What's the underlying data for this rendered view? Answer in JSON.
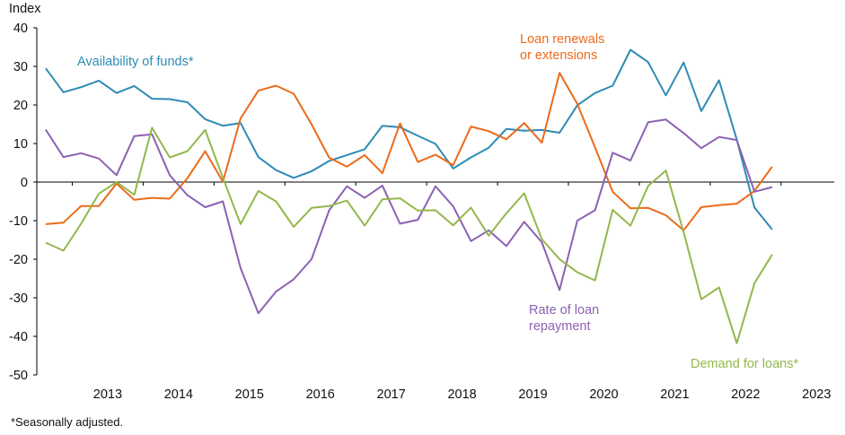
{
  "chart_data": {
    "type": "line",
    "ylabel": "Index",
    "ylim": [
      -50,
      40
    ],
    "yticks": [
      40,
      30,
      20,
      10,
      0,
      -10,
      -20,
      -30,
      -40,
      -50
    ],
    "x": [
      2012.625,
      2012.875,
      2013.125,
      2013.375,
      2013.625,
      2013.875,
      2014.125,
      2014.375,
      2014.625,
      2014.875,
      2015.125,
      2015.375,
      2015.625,
      2015.875,
      2016.125,
      2016.375,
      2016.625,
      2016.875,
      2017.125,
      2017.375,
      2017.625,
      2017.875,
      2018.125,
      2018.375,
      2018.625,
      2018.875,
      2019.125,
      2019.375,
      2019.625,
      2019.875,
      2020.125,
      2020.375,
      2020.625,
      2020.875,
      2021.125,
      2021.375,
      2021.625,
      2021.875,
      2022.125,
      2022.375,
      2022.625,
      2022.875
    ],
    "xlim": [
      2012.5,
      2023.75
    ],
    "xtick_labels": [
      "2013",
      "2014",
      "2015",
      "2016",
      "2017",
      "2018",
      "2019",
      "2020",
      "2021",
      "2022",
      "2023"
    ],
    "xtick_years": [
      2013,
      2014,
      2015,
      2016,
      2017,
      2018,
      2019,
      2020,
      2021,
      2022,
      2023
    ],
    "series": [
      {
        "name": "Availability of funds*",
        "color": "#2e8bb5",
        "values": [
          29.5,
          23.3,
          24.6,
          26.3,
          23.1,
          24.9,
          21.6,
          21.5,
          20.7,
          16.3,
          14.6,
          15.3,
          6.5,
          3.1,
          1.1,
          2.8,
          5.5,
          7.0,
          8.5,
          14.6,
          14.2,
          12.0,
          9.9,
          3.5,
          6.4,
          8.9,
          13.8,
          13.3,
          13.5,
          12.8,
          19.9,
          23.1,
          25.0,
          34.3,
          31.1,
          22.5,
          31.0,
          18.4,
          26.4,
          11.0,
          -6.6,
          -12.3
        ]
      },
      {
        "name": "Loan renewals or extensions",
        "color": "#ea6b1b",
        "values": [
          -10.9,
          -10.5,
          -6.2,
          -6.2,
          -0.4,
          -4.6,
          -4.1,
          -4.3,
          1.0,
          8.0,
          0.1,
          16.5,
          23.7,
          25.0,
          22.9,
          15.0,
          6.3,
          4.0,
          7.0,
          2.3,
          15.2,
          5.2,
          7.1,
          4.4,
          14.4,
          13.2,
          11.1,
          15.3,
          10.2,
          28.3,
          20.3,
          9.0,
          -2.5,
          -6.8,
          -6.7,
          -8.6,
          -12.5,
          -6.5,
          -6.0,
          -5.6,
          -2.3,
          4.0
        ]
      },
      {
        "name": "Rate of loan repayment",
        "color": "#8b62b3",
        "values": [
          13.6,
          6.5,
          7.5,
          6.1,
          1.8,
          11.9,
          12.4,
          1.8,
          -3.4,
          -6.5,
          -5.0,
          -22.3,
          -34.0,
          -28.4,
          -25.2,
          -20.0,
          -7.3,
          -1.1,
          -4.1,
          -0.9,
          -10.8,
          -9.8,
          -1.1,
          -6.3,
          -15.3,
          -12.5,
          -16.6,
          -10.3,
          -15.6,
          -28.0,
          -10.0,
          -7.3,
          7.6,
          5.6,
          15.5,
          16.2,
          12.7,
          8.8,
          11.7,
          10.9,
          -2.5,
          -1.3
        ]
      },
      {
        "name": "Demand for loans*",
        "color": "#93b84b",
        "values": [
          -15.7,
          -17.8,
          -10.8,
          -3.0,
          0.0,
          -3.3,
          14.1,
          6.4,
          8.0,
          13.5,
          1.1,
          -10.9,
          -2.3,
          -5.0,
          -11.6,
          -6.7,
          -6.2,
          -4.8,
          -11.3,
          -4.5,
          -4.2,
          -7.4,
          -7.3,
          -11.2,
          -6.6,
          -13.9,
          -8.1,
          -2.9,
          -14.8,
          -20.0,
          -23.4,
          -25.5,
          -7.2,
          -11.3,
          -1.0,
          3.0,
          -13.0,
          -30.4,
          -27.3,
          -41.8,
          -26.2,
          -18.8
        ]
      }
    ],
    "annotations": [
      {
        "series": 0,
        "lines": [
          "Availability of funds*"
        ]
      },
      {
        "series": 1,
        "lines": [
          "Loan renewals",
          "or extensions"
        ]
      },
      {
        "series": 2,
        "lines": [
          "Rate of loan",
          "repayment"
        ]
      },
      {
        "series": 3,
        "lines": [
          "Demand for loans*"
        ]
      }
    ],
    "footnote": "*Seasonally adjusted."
  }
}
